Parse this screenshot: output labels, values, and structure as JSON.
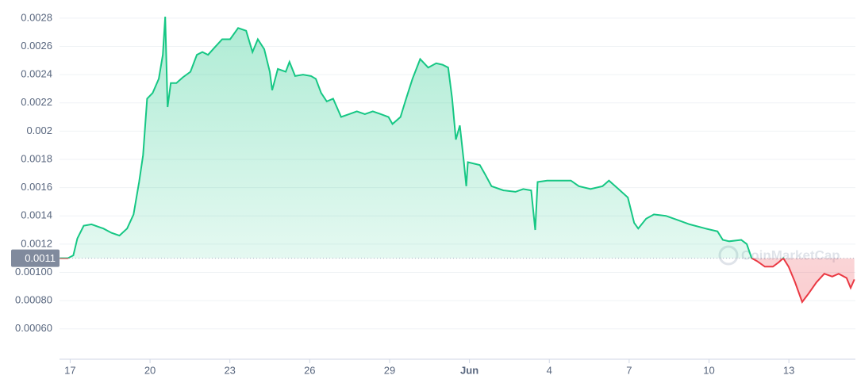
{
  "chart_data": {
    "type": "line",
    "x": [
      16.61,
      16.91,
      17.12,
      17.27,
      17.51,
      17.8,
      18.25,
      18.55,
      18.85,
      19.14,
      19.38,
      19.59,
      19.74,
      19.89,
      20.1,
      20.33,
      20.48,
      20.57,
      20.66,
      20.78,
      20.99,
      21.23,
      21.52,
      21.76,
      21.97,
      22.18,
      22.42,
      22.71,
      23.01,
      23.31,
      23.61,
      23.85,
      24.05,
      24.29,
      24.5,
      24.59,
      24.8,
      25.1,
      25.24,
      25.45,
      25.75,
      26.05,
      26.23,
      26.43,
      26.64,
      26.88,
      27.18,
      27.48,
      27.77,
      28.07,
      28.37,
      28.67,
      28.96,
      29.11,
      29.41,
      29.62,
      29.86,
      30.15,
      30.45,
      30.75,
      30.99,
      31.2,
      31.35,
      31.49,
      31.64,
      31.79,
      31.88,
      31.94,
      32.39,
      32.6,
      32.83,
      33.28,
      33.73,
      34.02,
      34.32,
      34.47,
      34.56,
      34.92,
      35.51,
      35.81,
      36.11,
      36.55,
      37.0,
      37.24,
      37.6,
      37.95,
      38.19,
      38.34,
      38.64,
      38.93,
      39.38,
      39.83,
      40.27,
      40.87,
      41.32,
      41.52,
      41.76,
      42.21,
      42.42,
      42.6,
      42.8,
      43.1,
      43.4,
      43.61,
      43.79,
      43.99,
      44.23,
      44.5,
      44.74,
      45.04,
      45.33,
      45.63,
      45.87,
      46.17,
      46.32,
      46.46
    ],
    "values": [
      0.0011,
      0.0011,
      0.00112,
      0.00124,
      0.00133,
      0.00134,
      0.00131,
      0.00128,
      0.00126,
      0.00131,
      0.00141,
      0.00164,
      0.00183,
      0.00223,
      0.00227,
      0.00237,
      0.00254,
      0.00281,
      0.00217,
      0.00234,
      0.00234,
      0.00238,
      0.00242,
      0.00254,
      0.00256,
      0.00254,
      0.00259,
      0.00265,
      0.00265,
      0.00273,
      0.00271,
      0.00256,
      0.00265,
      0.00258,
      0.00242,
      0.00229,
      0.00244,
      0.00242,
      0.00249,
      0.00239,
      0.0024,
      0.00239,
      0.00237,
      0.00227,
      0.00221,
      0.00223,
      0.0021,
      0.00212,
      0.00214,
      0.00212,
      0.00214,
      0.00212,
      0.0021,
      0.00205,
      0.0021,
      0.00223,
      0.00237,
      0.00251,
      0.00245,
      0.00248,
      0.00247,
      0.00245,
      0.00223,
      0.00194,
      0.00204,
      0.00178,
      0.00161,
      0.00178,
      0.00176,
      0.00169,
      0.00161,
      0.00158,
      0.00157,
      0.00159,
      0.00158,
      0.0013,
      0.00164,
      0.00165,
      0.00165,
      0.00165,
      0.00161,
      0.00159,
      0.00161,
      0.00165,
      0.00159,
      0.00153,
      0.00135,
      0.00131,
      0.00138,
      0.00141,
      0.0014,
      0.00137,
      0.00134,
      0.00131,
      0.00129,
      0.00123,
      0.00122,
      0.00123,
      0.0012,
      0.0011,
      0.00108,
      0.00104,
      0.00104,
      0.00107,
      0.0011,
      0.00104,
      0.00093,
      0.00079,
      0.00085,
      0.00093,
      0.00099,
      0.00097,
      0.00099,
      0.00096,
      0.00089,
      0.00095
    ],
    "baseline": 0.0011,
    "up_color": "#16c784",
    "down_color": "#ea3943",
    "xlim": [
      16.6,
      46.5
    ],
    "xticks": [
      17,
      20,
      23,
      26,
      29,
      {
        "value": 32,
        "label": "Jun"
      },
      {
        "value": 35,
        "label": "4"
      },
      {
        "value": 38,
        "label": "7"
      },
      {
        "value": 41,
        "label": "10"
      },
      {
        "value": 44,
        "label": "13"
      }
    ],
    "ylim": [
      0.00043,
      0.0029
    ],
    "yticks": [
      0.0028,
      0.0026,
      0.0024,
      0.0022,
      0.002,
      0.0018,
      0.0016,
      0.0014,
      0.0012,
      {
        "value": 0.001,
        "label": "0.00100"
      },
      {
        "value": 0.0008,
        "label": "0.00080"
      },
      {
        "value": 0.0006,
        "label": "0.00060"
      }
    ],
    "grid": true,
    "watermark": "CoinMarketCap"
  }
}
